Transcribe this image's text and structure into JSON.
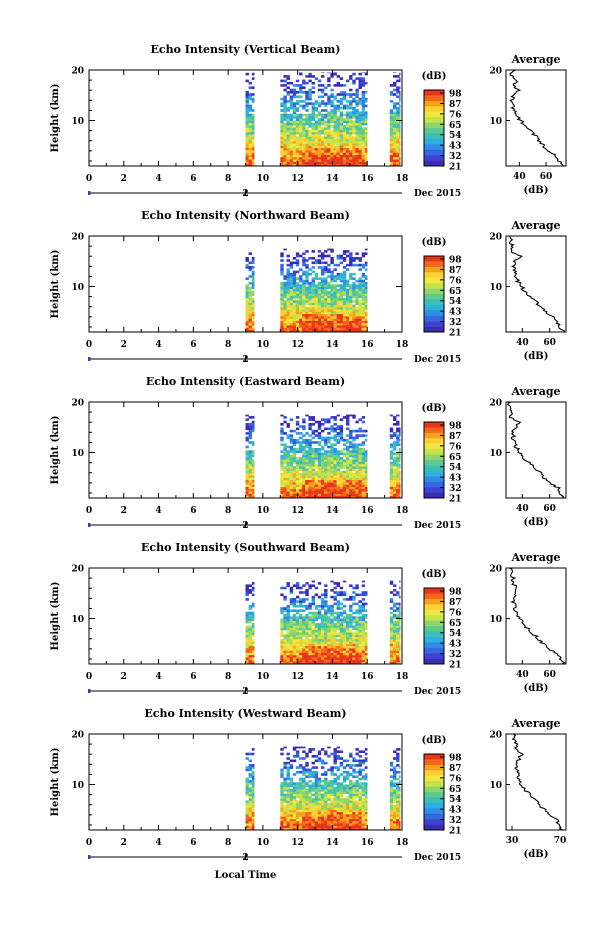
{
  "figure": {
    "xlabel": "Local Time",
    "date_label": "Dec 2015",
    "date_tick_label": "2"
  },
  "colorbar": {
    "unit_label": "(dB)",
    "tick_labels": [
      "98",
      "87",
      "76",
      "65",
      "54",
      "43",
      "32",
      "21"
    ],
    "colors": [
      "#e8361c",
      "#f4661a",
      "#f7a21b",
      "#fbd034",
      "#f0e83e",
      "#c4e24a",
      "#8fd66a",
      "#5ec98f",
      "#3dbfb9",
      "#2fb0dc",
      "#2e8ee7",
      "#3468e0",
      "#3b44d2",
      "#3a2bb6"
    ]
  },
  "chart_data": [
    {
      "type": "heatmap",
      "title": "Echo Intensity (Vertical Beam)",
      "ylabel": "Height (km)",
      "xlim": [
        0,
        18
      ],
      "ylim": [
        1,
        20
      ],
      "x_ticks": [
        "0",
        "2",
        "4",
        "6",
        "8",
        "10",
        "12",
        "14",
        "16",
        "18"
      ],
      "y_ticks": [
        "10",
        "20"
      ],
      "data_segments_hours": [
        [
          9.0,
          9.5
        ],
        [
          11.0,
          16.0
        ],
        [
          17.3,
          17.9
        ]
      ],
      "top_height_km": 19.5,
      "average_profile": {
        "title": "Average",
        "xlabel": "(dB)",
        "xlim": [
          30,
          75
        ],
        "x_ticks": [
          "40",
          "60"
        ],
        "y_ticks": [
          "10",
          "20"
        ],
        "heights_km": [
          1,
          2,
          3,
          4,
          5,
          6,
          7,
          8,
          9,
          10,
          11,
          12,
          13,
          14,
          15,
          16,
          17,
          18,
          19,
          20
        ],
        "values_db": [
          72,
          70,
          68,
          62,
          58,
          55,
          52,
          48,
          44,
          41,
          38,
          36,
          35,
          34,
          36,
          40,
          35,
          38,
          33,
          36
        ]
      }
    },
    {
      "type": "heatmap",
      "title": "Echo Intensity (Northward Beam)",
      "ylabel": "Height (km)",
      "xlim": [
        0,
        18
      ],
      "ylim": [
        1,
        20
      ],
      "x_ticks": [
        "0",
        "2",
        "4",
        "6",
        "8",
        "10",
        "12",
        "14",
        "16",
        "18"
      ],
      "y_ticks": [
        "10",
        "20"
      ],
      "data_segments_hours": [
        [
          9.0,
          9.5
        ],
        [
          11.0,
          16.0
        ]
      ],
      "top_height_km": 17.5,
      "average_profile": {
        "title": "Average",
        "xlabel": "(dB)",
        "xlim": [
          28,
          72
        ],
        "x_ticks": [
          "40",
          "60"
        ],
        "y_ticks": [
          "10",
          "20"
        ],
        "heights_km": [
          1,
          2,
          3,
          4,
          5,
          6,
          7,
          8,
          9,
          10,
          11,
          12,
          13,
          14,
          15,
          16,
          17,
          18,
          19,
          20
        ],
        "values_db": [
          70,
          68,
          66,
          62,
          57,
          53,
          50,
          46,
          42,
          39,
          37,
          35,
          34,
          33,
          35,
          38,
          32,
          33,
          31,
          32
        ]
      }
    },
    {
      "type": "heatmap",
      "title": "Echo Intensity (Eastward Beam)",
      "ylabel": "Height (km)",
      "xlim": [
        0,
        18
      ],
      "ylim": [
        1,
        20
      ],
      "x_ticks": [
        "0",
        "2",
        "4",
        "6",
        "8",
        "10",
        "12",
        "14",
        "16",
        "18"
      ],
      "y_ticks": [
        "10",
        "20"
      ],
      "data_segments_hours": [
        [
          9.0,
          9.5
        ],
        [
          11.0,
          16.0
        ],
        [
          17.3,
          17.9
        ]
      ],
      "top_height_km": 17.5,
      "average_profile": {
        "title": "Average",
        "xlabel": "(dB)",
        "xlim": [
          28,
          72
        ],
        "x_ticks": [
          "40",
          "60"
        ],
        "y_ticks": [
          "10",
          "20"
        ],
        "heights_km": [
          1,
          2,
          3,
          4,
          5,
          6,
          7,
          8,
          9,
          10,
          11,
          12,
          13,
          14,
          15,
          16,
          17,
          18,
          19,
          20
        ],
        "values_db": [
          70,
          68,
          66,
          61,
          56,
          53,
          49,
          45,
          41,
          38,
          36,
          34,
          33,
          33,
          35,
          37,
          32,
          33,
          30,
          31
        ]
      }
    },
    {
      "type": "heatmap",
      "title": "Echo Intensity (Southward Beam)",
      "ylabel": "Height (km)",
      "xlim": [
        0,
        18
      ],
      "ylim": [
        1,
        20
      ],
      "x_ticks": [
        "0",
        "2",
        "4",
        "6",
        "8",
        "10",
        "12",
        "14",
        "16",
        "18"
      ],
      "y_ticks": [
        "10",
        "20"
      ],
      "data_segments_hours": [
        [
          9.0,
          9.5
        ],
        [
          11.0,
          16.0
        ],
        [
          17.3,
          17.9
        ]
      ],
      "top_height_km": 17.5,
      "average_profile": {
        "title": "Average",
        "xlabel": "(dB)",
        "xlim": [
          28,
          72
        ],
        "x_ticks": [
          "40",
          "60"
        ],
        "y_ticks": [
          "10",
          "20"
        ],
        "heights_km": [
          1,
          2,
          3,
          4,
          5,
          6,
          7,
          8,
          9,
          10,
          11,
          12,
          13,
          14,
          15,
          16,
          17,
          18,
          19,
          20
        ],
        "values_db": [
          70,
          68,
          65,
          60,
          55,
          52,
          48,
          44,
          41,
          38,
          36,
          35,
          34,
          33,
          35,
          36,
          33,
          34,
          31,
          32
        ]
      }
    },
    {
      "type": "heatmap",
      "title": "Echo Intensity (Westward Beam)",
      "ylabel": "Height (km)",
      "xlim": [
        0,
        18
      ],
      "ylim": [
        1,
        20
      ],
      "x_ticks": [
        "0",
        "2",
        "4",
        "6",
        "8",
        "10",
        "12",
        "14",
        "16",
        "18"
      ],
      "y_ticks": [
        "10",
        "20"
      ],
      "data_segments_hours": [
        [
          9.0,
          9.5
        ],
        [
          11.0,
          16.0
        ],
        [
          17.3,
          17.9
        ]
      ],
      "top_height_km": 17.5,
      "average_profile": {
        "title": "Average",
        "xlabel": "(dB)",
        "xlim": [
          25,
          75
        ],
        "x_ticks": [
          "30",
          "70"
        ],
        "y_ticks": [
          "10",
          "20"
        ],
        "heights_km": [
          1,
          2,
          3,
          4,
          5,
          6,
          7,
          8,
          9,
          10,
          11,
          12,
          13,
          14,
          15,
          16,
          17,
          18,
          19,
          20
        ],
        "values_db": [
          72,
          70,
          67,
          62,
          57,
          53,
          49,
          45,
          41,
          38,
          36,
          35,
          34,
          33,
          36,
          38,
          33,
          34,
          31,
          32
        ]
      }
    }
  ]
}
